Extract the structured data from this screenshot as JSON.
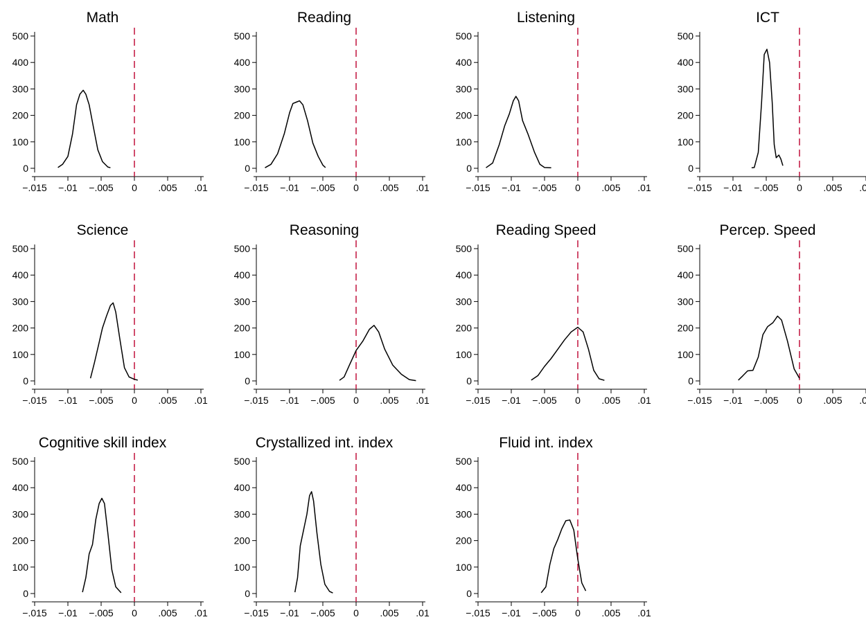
{
  "chart_data": {
    "type": "line",
    "xlim": [
      -0.015,
      0.01
    ],
    "ylim": [
      0,
      500
    ],
    "x_ticks": [
      "-.015",
      "-.01",
      "-.005",
      "0",
      ".005",
      ".01"
    ],
    "x_tick_values": [
      -0.015,
      -0.01,
      -0.005,
      0,
      0.005,
      0.01
    ],
    "y_ticks": [
      "0",
      "100",
      "200",
      "300",
      "400",
      "500"
    ],
    "y_tick_values": [
      0,
      100,
      200,
      300,
      400,
      500
    ],
    "reference_line": {
      "x": 0,
      "style": "dashed",
      "color": "#c0103c"
    },
    "grid": false,
    "panels": [
      {
        "title": "Math",
        "series": [
          {
            "x": -0.0115,
            "y": 3
          },
          {
            "x": -0.0108,
            "y": 15
          },
          {
            "x": -0.01,
            "y": 45
          },
          {
            "x": -0.0093,
            "y": 130
          },
          {
            "x": -0.0087,
            "y": 240
          },
          {
            "x": -0.0082,
            "y": 280
          },
          {
            "x": -0.0077,
            "y": 295
          },
          {
            "x": -0.0073,
            "y": 280
          },
          {
            "x": -0.0068,
            "y": 240
          },
          {
            "x": -0.0062,
            "y": 160
          },
          {
            "x": -0.0055,
            "y": 70
          },
          {
            "x": -0.0048,
            "y": 25
          },
          {
            "x": -0.004,
            "y": 5
          },
          {
            "x": -0.0036,
            "y": 2
          }
        ]
      },
      {
        "title": "Reading",
        "series": [
          {
            "x": -0.0137,
            "y": 2
          },
          {
            "x": -0.0128,
            "y": 15
          },
          {
            "x": -0.0118,
            "y": 55
          },
          {
            "x": -0.0108,
            "y": 130
          },
          {
            "x": -0.01,
            "y": 210
          },
          {
            "x": -0.0095,
            "y": 245
          },
          {
            "x": -0.009,
            "y": 250
          },
          {
            "x": -0.0085,
            "y": 255
          },
          {
            "x": -0.008,
            "y": 240
          },
          {
            "x": -0.0073,
            "y": 180
          },
          {
            "x": -0.0065,
            "y": 95
          },
          {
            "x": -0.0057,
            "y": 45
          },
          {
            "x": -0.005,
            "y": 12
          },
          {
            "x": -0.0046,
            "y": 3
          }
        ]
      },
      {
        "title": "Listening",
        "series": [
          {
            "x": -0.0138,
            "y": 2
          },
          {
            "x": -0.0128,
            "y": 20
          },
          {
            "x": -0.0118,
            "y": 90
          },
          {
            "x": -0.011,
            "y": 160
          },
          {
            "x": -0.0103,
            "y": 205
          },
          {
            "x": -0.0097,
            "y": 255
          },
          {
            "x": -0.0093,
            "y": 272
          },
          {
            "x": -0.0089,
            "y": 255
          },
          {
            "x": -0.0083,
            "y": 180
          },
          {
            "x": -0.0075,
            "y": 130
          },
          {
            "x": -0.0065,
            "y": 60
          },
          {
            "x": -0.0057,
            "y": 15
          },
          {
            "x": -0.005,
            "y": 3
          },
          {
            "x": -0.004,
            "y": 2
          }
        ]
      },
      {
        "title": "ICT",
        "series": [
          {
            "x": -0.0072,
            "y": 2
          },
          {
            "x": -0.0068,
            "y": 3
          },
          {
            "x": -0.0062,
            "y": 60
          },
          {
            "x": -0.0057,
            "y": 250
          },
          {
            "x": -0.0053,
            "y": 430
          },
          {
            "x": -0.0049,
            "y": 450
          },
          {
            "x": -0.0045,
            "y": 400
          },
          {
            "x": -0.0041,
            "y": 250
          },
          {
            "x": -0.0038,
            "y": 90
          },
          {
            "x": -0.0035,
            "y": 40
          },
          {
            "x": -0.0031,
            "y": 50
          },
          {
            "x": -0.0028,
            "y": 35
          },
          {
            "x": -0.0025,
            "y": 10
          }
        ]
      },
      {
        "title": "Science",
        "series": [
          {
            "x": -0.0066,
            "y": 10
          },
          {
            "x": -0.006,
            "y": 70
          },
          {
            "x": -0.0054,
            "y": 135
          },
          {
            "x": -0.0048,
            "y": 200
          },
          {
            "x": -0.0042,
            "y": 245
          },
          {
            "x": -0.0036,
            "y": 285
          },
          {
            "x": -0.0032,
            "y": 295
          },
          {
            "x": -0.0028,
            "y": 260
          },
          {
            "x": -0.0022,
            "y": 160
          },
          {
            "x": -0.0015,
            "y": 50
          },
          {
            "x": -0.0008,
            "y": 15
          },
          {
            "x": 0.0,
            "y": 6
          },
          {
            "x": 0.0005,
            "y": 3
          }
        ]
      },
      {
        "title": "Reasoning",
        "series": [
          {
            "x": -0.0025,
            "y": 2
          },
          {
            "x": -0.0018,
            "y": 15
          },
          {
            "x": -0.001,
            "y": 60
          },
          {
            "x": 0.0,
            "y": 115
          },
          {
            "x": 0.001,
            "y": 150
          },
          {
            "x": 0.002,
            "y": 195
          },
          {
            "x": 0.0027,
            "y": 210
          },
          {
            "x": 0.0034,
            "y": 185
          },
          {
            "x": 0.0043,
            "y": 120
          },
          {
            "x": 0.0055,
            "y": 60
          },
          {
            "x": 0.0068,
            "y": 25
          },
          {
            "x": 0.008,
            "y": 5
          },
          {
            "x": 0.009,
            "y": 1
          }
        ]
      },
      {
        "title": "Reading Speed",
        "series": [
          {
            "x": -0.007,
            "y": 3
          },
          {
            "x": -0.006,
            "y": 20
          },
          {
            "x": -0.005,
            "y": 55
          },
          {
            "x": -0.004,
            "y": 85
          },
          {
            "x": -0.003,
            "y": 120
          },
          {
            "x": -0.002,
            "y": 155
          },
          {
            "x": -0.001,
            "y": 185
          },
          {
            "x": 0.0,
            "y": 203
          },
          {
            "x": 0.0008,
            "y": 185
          },
          {
            "x": 0.0016,
            "y": 120
          },
          {
            "x": 0.0024,
            "y": 40
          },
          {
            "x": 0.0032,
            "y": 8
          },
          {
            "x": 0.004,
            "y": 2
          }
        ]
      },
      {
        "title": "Percep. Speed",
        "series": [
          {
            "x": -0.0092,
            "y": 3
          },
          {
            "x": -0.0085,
            "y": 20
          },
          {
            "x": -0.0078,
            "y": 38
          },
          {
            "x": -0.007,
            "y": 40
          },
          {
            "x": -0.0062,
            "y": 90
          },
          {
            "x": -0.0055,
            "y": 175
          },
          {
            "x": -0.0048,
            "y": 205
          },
          {
            "x": -0.004,
            "y": 220
          },
          {
            "x": -0.0033,
            "y": 245
          },
          {
            "x": -0.0027,
            "y": 230
          },
          {
            "x": -0.0018,
            "y": 150
          },
          {
            "x": -0.0008,
            "y": 45
          },
          {
            "x": 0.0,
            "y": 10
          }
        ]
      },
      {
        "title": "Cognitive skill index",
        "series": [
          {
            "x": -0.0078,
            "y": 5
          },
          {
            "x": -0.0073,
            "y": 60
          },
          {
            "x": -0.0068,
            "y": 150
          },
          {
            "x": -0.0063,
            "y": 185
          },
          {
            "x": -0.0058,
            "y": 280
          },
          {
            "x": -0.0053,
            "y": 340
          },
          {
            "x": -0.0049,
            "y": 360
          },
          {
            "x": -0.0045,
            "y": 340
          },
          {
            "x": -0.004,
            "y": 230
          },
          {
            "x": -0.0034,
            "y": 90
          },
          {
            "x": -0.0028,
            "y": 25
          },
          {
            "x": -0.002,
            "y": 3
          }
        ]
      },
      {
        "title": "Crystallized int. index",
        "series": [
          {
            "x": -0.0092,
            "y": 5
          },
          {
            "x": -0.0088,
            "y": 60
          },
          {
            "x": -0.0084,
            "y": 180
          },
          {
            "x": -0.0079,
            "y": 240
          },
          {
            "x": -0.0074,
            "y": 300
          },
          {
            "x": -0.007,
            "y": 370
          },
          {
            "x": -0.0067,
            "y": 385
          },
          {
            "x": -0.0064,
            "y": 350
          },
          {
            "x": -0.0059,
            "y": 230
          },
          {
            "x": -0.0053,
            "y": 110
          },
          {
            "x": -0.0047,
            "y": 35
          },
          {
            "x": -0.004,
            "y": 8
          },
          {
            "x": -0.0035,
            "y": 2
          }
        ]
      },
      {
        "title": "Fluid int. index",
        "series": [
          {
            "x": -0.0055,
            "y": 3
          },
          {
            "x": -0.0048,
            "y": 25
          },
          {
            "x": -0.0042,
            "y": 110
          },
          {
            "x": -0.0036,
            "y": 170
          },
          {
            "x": -0.003,
            "y": 205
          },
          {
            "x": -0.0024,
            "y": 245
          },
          {
            "x": -0.0018,
            "y": 275
          },
          {
            "x": -0.0012,
            "y": 278
          },
          {
            "x": -0.0006,
            "y": 240
          },
          {
            "x": 0.0,
            "y": 130
          },
          {
            "x": 0.0006,
            "y": 40
          },
          {
            "x": 0.0012,
            "y": 10
          }
        ]
      }
    ]
  }
}
